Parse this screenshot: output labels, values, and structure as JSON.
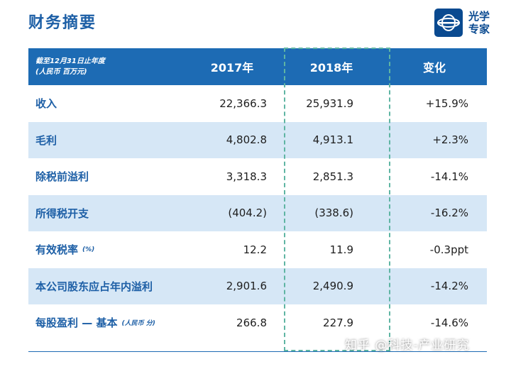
{
  "page": {
    "title": "财务摘要"
  },
  "logo": {
    "line1": "光学",
    "line2": "专家"
  },
  "table": {
    "header": {
      "label_line1": "截至12月31日止年度",
      "label_line2": "(人民币 百万元)",
      "col_2017": "2017年",
      "col_2018": "2018年",
      "col_change": "变化"
    },
    "rows": [
      {
        "label": "收入",
        "sub": "",
        "v2017": "22,366.3",
        "v2018": "25,931.9",
        "change": "+15.9%"
      },
      {
        "label": "毛利",
        "sub": "",
        "v2017": "4,802.8",
        "v2018": "4,913.1",
        "change": "+2.3%"
      },
      {
        "label": "除税前溢利",
        "sub": "",
        "v2017": "3,318.3",
        "v2018": "2,851.3",
        "change": "-14.1%"
      },
      {
        "label": "所得税开支",
        "sub": "",
        "v2017": "(404.2)",
        "v2018": "(338.6)",
        "change": "-16.2%"
      },
      {
        "label": "有效税率",
        "sub": "(%)",
        "v2017": "12.2",
        "v2018": "11.9",
        "change": "-0.3ppt"
      },
      {
        "label": "本公司股东应占年内溢利",
        "sub": "",
        "v2017": "2,901.6",
        "v2018": "2,490.9",
        "change": "-14.2%"
      },
      {
        "label": "每股盈利 — 基本",
        "sub": "(人民币 分)",
        "v2017": "266.8",
        "v2018": "227.9",
        "change": "-14.6%"
      }
    ]
  },
  "watermark": "知乎 @科技-产业研究",
  "colors": {
    "brand_blue": "#1d6bb4",
    "label_blue": "#1d5fa6",
    "row_alt": "#d6e7f6",
    "highlight": "#5fb5a3"
  }
}
